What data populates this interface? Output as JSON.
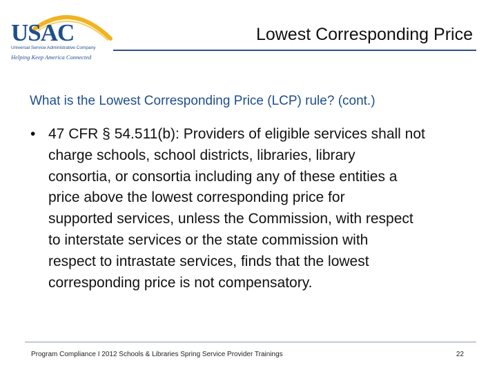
{
  "logo": {
    "wordmark": "USAC",
    "subtitle": "Universal Service Administrative Company",
    "tagline": "Helping Keep America Connected",
    "arc_color": "#f0b323",
    "brand_color": "#1f4e8c"
  },
  "header": {
    "title": "Lowest Corresponding Price"
  },
  "content": {
    "subtitle": "What is the Lowest Corresponding Price (LCP) rule? (cont.)",
    "bullet_marker": "•",
    "bullet_lines": [
      "47 CFR § 54.511(b): Providers of eligible services shall not",
      "charge schools, school districts, libraries, library",
      "consortia, or consortia including any of these entities a",
      "price above the lowest corresponding price for",
      "supported services, unless the Commission, with respect",
      "to interstate services or the state commission with",
      "respect to intrastate services, finds that the lowest",
      "corresponding price is not compensatory."
    ]
  },
  "footer": {
    "program": "Program Compliance",
    "separator": "I",
    "event": "2012 Schools & Libraries Spring Service Provider Trainings",
    "page_number": "22"
  }
}
